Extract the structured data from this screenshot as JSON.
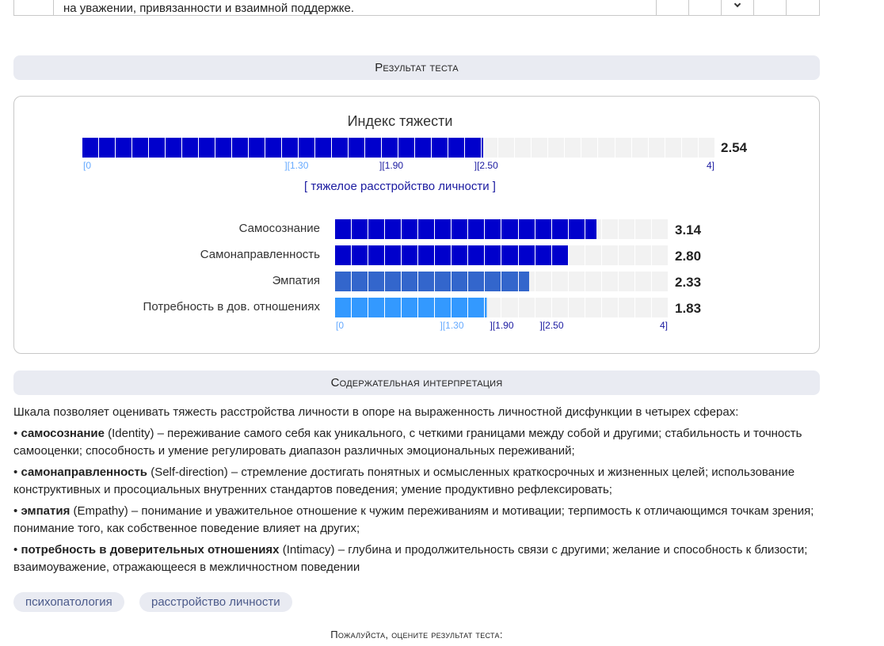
{
  "top_row": {
    "text": "на уважении, привязанности и взаимной поддержке."
  },
  "result_header": "Результат теста",
  "severity_index": {
    "title": "Индекс тяжести",
    "value": 2.54,
    "value_label": "2.54",
    "max": 4,
    "ticks": [
      "[0",
      "][1.30",
      "][1.90",
      "][2.50",
      "4]"
    ],
    "category": "[ тяжелое расстройство личности ]",
    "color": "#0000cc"
  },
  "scales": [
    {
      "label": "Самосознание",
      "value": 3.14,
      "value_label": "3.14",
      "color": "#0000cc"
    },
    {
      "label": "Самонаправленность",
      "value": 2.8,
      "value_label": "2.80",
      "color": "#0000cc"
    },
    {
      "label": "Эмпатия",
      "value": 2.33,
      "value_label": "2.33",
      "color": "#3366cc"
    },
    {
      "label": "Потребность в дов. отношениях",
      "value": 1.83,
      "value_label": "1.83",
      "color": "#3399ff"
    }
  ],
  "scale_ticks": [
    "[0",
    "][1.30",
    "][1.90",
    "][2.50",
    "4]"
  ],
  "interpretation": {
    "header": "Содержательная интерпретация",
    "intro": "Шкала позволяет оценивать тяжесть расстройства личности в опоре на выраженность личностной дисфункции в четырех сферах:",
    "items": [
      {
        "bullet": "•",
        "term": "самосознание",
        "text": " (Identity) – переживание самого себя как уникального, с четкими границами между собой и другими; стабильность и точность самооценки; способность и умение регулировать диапазон различных эмоциональных переживаний;"
      },
      {
        "bullet": "•",
        "term": "самонаправленность",
        "text": " (Self-direction) – стремление достигать понятных и осмысленных краткосрочных и жизненных целей; использование конструктивных и просоциальных внутренних стандартов поведения; умение продуктивно рефлексировать;"
      },
      {
        "bullet": "•",
        "term": "эмпатия",
        "text": " (Empathy) – понимание и уважительное отношение к чужим переживаниям и мотивации; терпимость к отличающимся точкам зрения; понимание того, как собственное поведение влияет на других;"
      },
      {
        "bullet": "•",
        "term": "потребность в доверительных отношениях",
        "text": " (Intimacy) – глубина и продолжительность связи с другими; желание и способность к близости; взаимоуважение, отражающееся в межличностном поведении"
      }
    ]
  },
  "tags": [
    "психопатология",
    "расстройство личности"
  ],
  "rate_prompt": "Пожалуйста, оцените результат теста:",
  "colors": {
    "empty_cell": "#f2f2f2",
    "header_bg": "#e9ebf2",
    "tick_light": "#66aaff",
    "tick_dark": "#1a1aa0"
  }
}
